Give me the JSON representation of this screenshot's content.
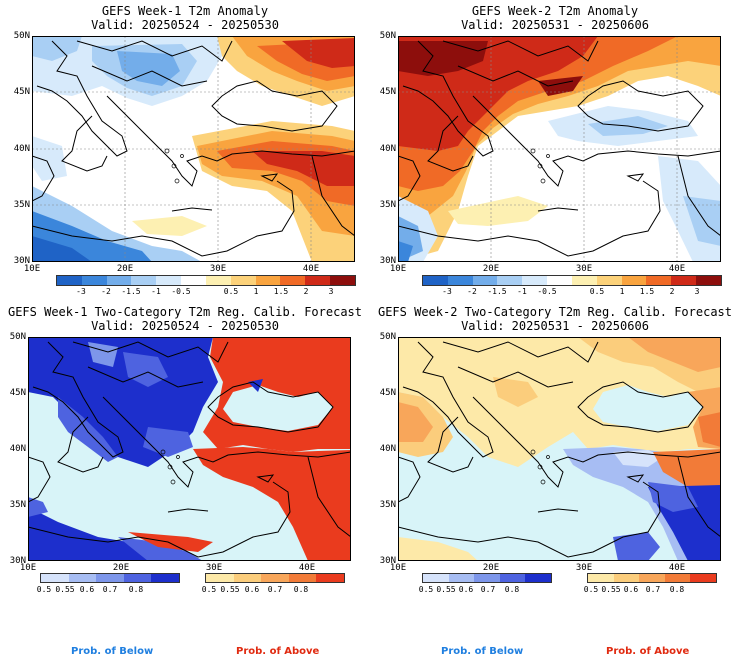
{
  "panels": [
    {
      "id": "tl",
      "title": "GEFS Week-1 T2m Anomaly",
      "valid": "Valid: 20250524 - 20250530",
      "lat_labels": [
        "50N",
        "45N",
        "40N",
        "35N",
        "30N"
      ],
      "lon_labels": [
        "10E",
        "20E",
        "30E",
        "40E"
      ],
      "colorbar": {
        "type": "anomaly",
        "labels": [
          "-3",
          "-2",
          "-1.5",
          "-1",
          "-0.5",
          "0.5",
          "1",
          "1.5",
          "2",
          "3"
        ]
      }
    },
    {
      "id": "tr",
      "title": "GEFS Week-2 T2m Anomaly",
      "valid": "Valid: 20250531 - 20250606",
      "lat_labels": [
        "50N",
        "45N",
        "40N",
        "35N",
        "30N"
      ],
      "lon_labels": [
        "10E",
        "20E",
        "30E",
        "40E"
      ],
      "colorbar": {
        "type": "anomaly",
        "labels": [
          "-3",
          "-2",
          "-1.5",
          "-1",
          "-0.5",
          "0.5",
          "1",
          "1.5",
          "2",
          "3"
        ]
      }
    },
    {
      "id": "bl",
      "title": "GEFS Week-1 Two-Category T2m Reg. Calib. Forecast",
      "valid": "Valid: 20250524 - 20250530",
      "lat_labels": [
        "50N",
        "45N",
        "40N",
        "35N",
        "30N"
      ],
      "lon_labels": [
        "10E",
        "20E",
        "30E",
        "40E"
      ],
      "colorbar": {
        "type": "prob",
        "below_labels": [
          "0.5",
          "0.55",
          "0.6",
          "0.7",
          "0.8"
        ],
        "above_labels": [
          "0.5",
          "0.55",
          "0.6",
          "0.7",
          "0.8"
        ]
      }
    },
    {
      "id": "br",
      "title": "GEFS Week-2 Two-Category T2m Reg. Calib. Forecast",
      "valid": "Valid: 20250531 - 20250606",
      "lat_labels": [
        "50N",
        "45N",
        "40N",
        "35N",
        "30N"
      ],
      "lon_labels": [
        "10E",
        "20E",
        "30E",
        "40E"
      ],
      "colorbar": {
        "type": "prob",
        "below_labels": [
          "0.5",
          "0.55",
          "0.6",
          "0.7",
          "0.8"
        ],
        "above_labels": [
          "0.5",
          "0.55",
          "0.6",
          "0.7",
          "0.8"
        ]
      }
    }
  ],
  "legend": {
    "below": "Prob. of Below",
    "above": "Prob. of Above"
  },
  "colors": {
    "anomaly": [
      "#1f63c6",
      "#3b86db",
      "#73adea",
      "#a9cff4",
      "#d7eafb",
      "#ffffff",
      "#fdf0b2",
      "#fcd27a",
      "#f9a43f",
      "#f06a26",
      "#cf2a18",
      "#8d0e0c"
    ],
    "below": [
      "#d6e3fb",
      "#a7bdf3",
      "#7d96ea",
      "#4e63e0",
      "#1d2fcc"
    ],
    "above": [
      "#fde9a8",
      "#fbcd7c",
      "#f8a65a",
      "#f27b38",
      "#ea3b1e"
    ],
    "sea": "#d8f4f8",
    "below_label": "#1f7fe0",
    "above_label": "#e02a10"
  }
}
